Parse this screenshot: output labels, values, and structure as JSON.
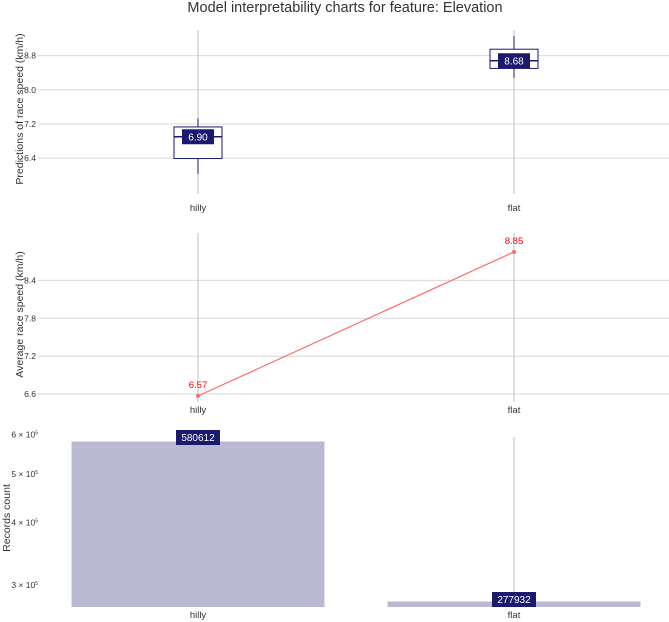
{
  "title": "Model interpretability charts for feature: Elevation",
  "colors": {
    "box_stroke": "#1a1a6e",
    "label_bg": "#1a1a6e",
    "line": "#ff6b6b",
    "point_label": "#ff0000",
    "bar_fill": "#b9b9d4",
    "grid": "#d9d9d9",
    "vgrid": "#bfbfbf"
  },
  "chart_data": [
    {
      "type": "box",
      "ylabel": "Predictions of race speed (km/h)",
      "categories": [
        "hilly",
        "flat"
      ],
      "y_ticks": [
        "6.4",
        "7.2",
        "8.0",
        "8.8"
      ],
      "ylim": [
        5.7,
        9.4
      ],
      "boxes": [
        {
          "category": "hilly",
          "whisker_low": 6.03,
          "q1": 6.39,
          "median": 6.9,
          "q3": 7.13,
          "whisker_high": 7.33,
          "label": "6.90"
        },
        {
          "category": "flat",
          "whisker_low": 8.28,
          "q1": 8.5,
          "median": 8.68,
          "q3": 8.95,
          "whisker_high": 9.26,
          "label": "8.68"
        }
      ]
    },
    {
      "type": "line",
      "ylabel": "Average race speed (km/h)",
      "categories": [
        "hilly",
        "flat"
      ],
      "values": [
        6.57,
        8.85
      ],
      "labels": [
        "6.57",
        "8.85"
      ],
      "y_ticks": [
        "6.6",
        "7.2",
        "7.8",
        "8.4"
      ],
      "ylim": [
        6.57,
        9.15
      ]
    },
    {
      "type": "bar",
      "ylabel": "Records count",
      "categories": [
        "hilly",
        "flat"
      ],
      "values": [
        580612,
        277932
      ],
      "labels": [
        "580612",
        "277932"
      ],
      "y_ticks": [
        {
          "value": 300000,
          "base": "3 × 10",
          "exp": "5"
        },
        {
          "value": 400000,
          "base": "4 × 10",
          "exp": "5"
        },
        {
          "value": 500000,
          "base": "5 × 10",
          "exp": "5"
        },
        {
          "value": 600000,
          "base": "6 × 10",
          "exp": "5"
        }
      ],
      "scale": "log",
      "ylim": [
        271000,
        615000
      ]
    }
  ]
}
